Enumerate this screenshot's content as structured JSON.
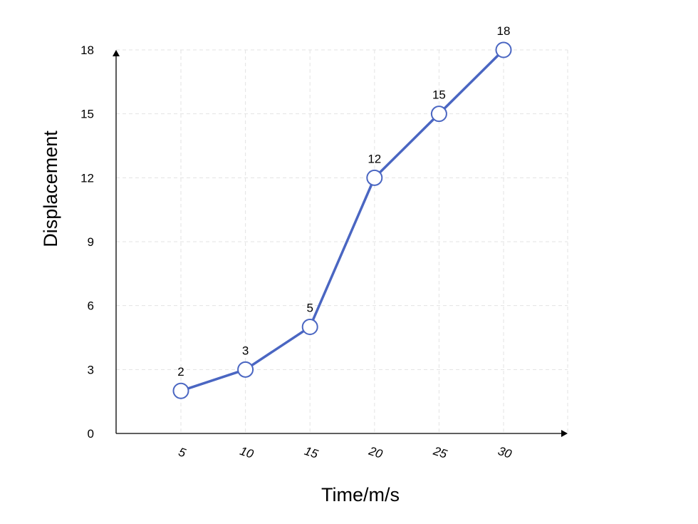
{
  "chart_data": {
    "type": "line",
    "title": "",
    "xlabel": "Time/m/s",
    "ylabel": "Displacement",
    "categories": [
      "5",
      "10",
      "15",
      "20",
      "25",
      "30"
    ],
    "x_tick_labels": [
      "5",
      "10",
      "15",
      "20",
      "25",
      "30"
    ],
    "y_ticks": [
      0,
      3,
      6,
      9,
      12,
      15,
      18
    ],
    "y_tick_labels": [
      "0",
      "3",
      "6",
      "9",
      "12",
      "15",
      "18"
    ],
    "ylim": [
      0,
      18
    ],
    "series": [
      {
        "values": [
          2,
          3,
          5,
          12,
          15,
          18
        ],
        "data_labels": [
          "2",
          "3",
          "5",
          "12",
          "15",
          "18"
        ],
        "color": "#4a66c2"
      }
    ],
    "grid": true,
    "legend": "none"
  }
}
